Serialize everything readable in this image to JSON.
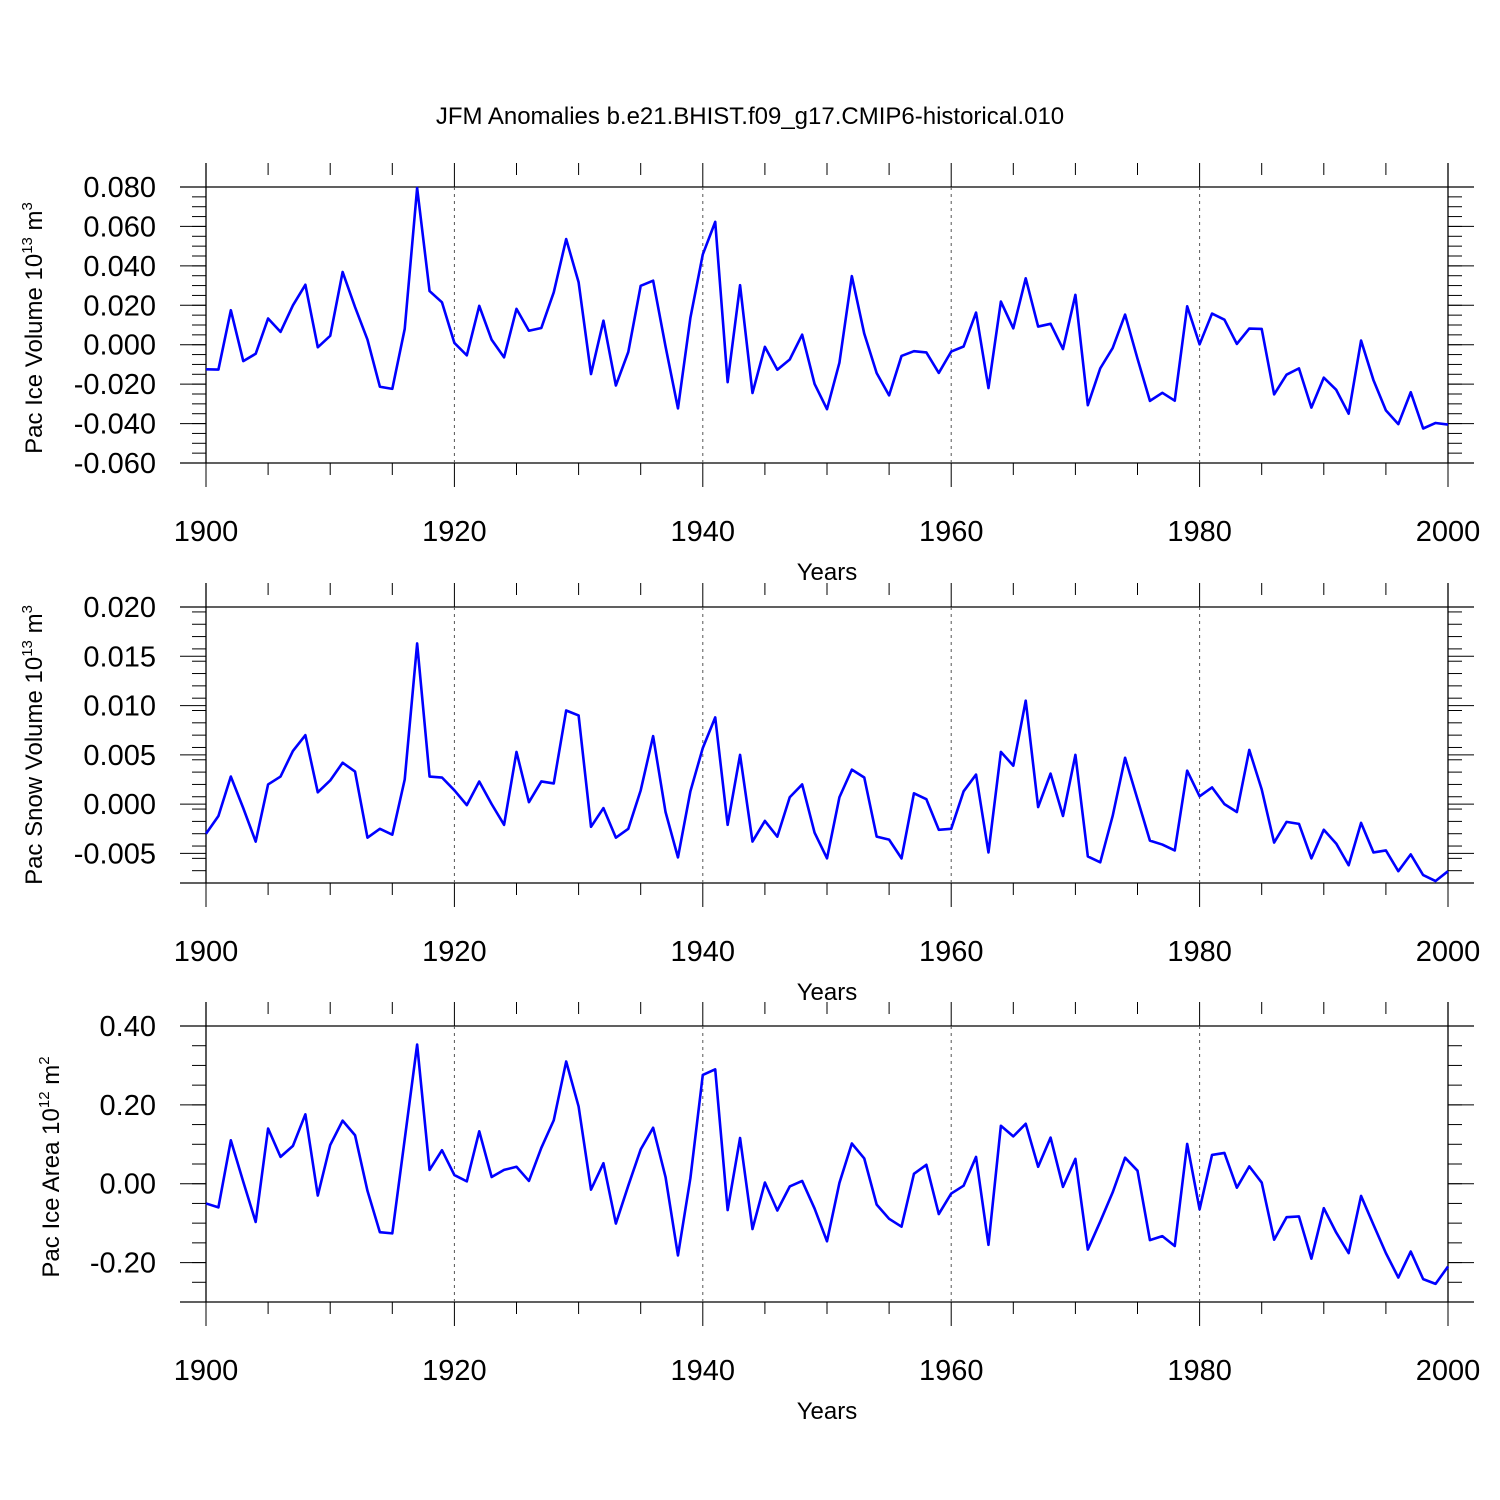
{
  "figure_title": "JFM Anomalies b.e21.BHIST.f09_g17.CMIP6-historical.010",
  "chart_data": [
    {
      "type": "line",
      "ylabel": "Pac Ice Volume",
      "ylabel_unit_base": "10",
      "ylabel_unit_exp": "13",
      "ylabel_unit": "m",
      "ylabel_unit_unit_exp": "3",
      "xlabel": "Years",
      "xlim": [
        1900,
        2000
      ],
      "ylim": [
        -0.06,
        0.08
      ],
      "x_ticks": [
        "1900",
        "1920",
        "1940",
        "1960",
        "1980",
        "2000"
      ],
      "y_ticks": [
        "0.080",
        "0.060",
        "0.040",
        "0.020",
        "0.000",
        "-0.020",
        "-0.040",
        "-0.060"
      ],
      "y_tick_values": [
        0.08,
        0.06,
        0.04,
        0.02,
        0.0,
        -0.02,
        -0.04,
        -0.06
      ],
      "grid": "dashed vertical at 1920, 1940, 1960, 1980",
      "x_start": 1900,
      "line_color": "#0000ff",
      "values": [
        -0.0125,
        -0.0126,
        0.0175,
        -0.0083,
        -0.0046,
        0.0133,
        0.0065,
        0.02,
        0.0304,
        -0.0013,
        0.0045,
        0.0369,
        0.0191,
        0.0026,
        -0.0213,
        -0.0224,
        0.008,
        0.0795,
        0.0272,
        0.0215,
        0.0009,
        -0.0054,
        0.0197,
        0.0025,
        -0.0064,
        0.0182,
        0.0071,
        0.0085,
        0.0266,
        0.0536,
        0.0317,
        -0.0149,
        0.0122,
        -0.0207,
        -0.0037,
        0.0299,
        0.0325,
        -0.0009,
        -0.0323,
        0.0136,
        0.0458,
        0.0623,
        -0.019,
        0.0302,
        -0.0245,
        -0.0011,
        -0.0127,
        -0.0075,
        0.0051,
        -0.0199,
        -0.0327,
        -0.0091,
        0.0348,
        0.0056,
        -0.0144,
        -0.0257,
        -0.0057,
        -0.0033,
        -0.0039,
        -0.0143,
        -0.0035,
        -0.0009,
        0.0163,
        -0.022,
        0.0219,
        0.0083,
        0.0337,
        0.0092,
        0.0106,
        -0.0022,
        0.0253,
        -0.0307,
        -0.012,
        -0.0017,
        0.0153,
        -0.0071,
        -0.0285,
        -0.0244,
        -0.0284,
        0.0195,
        0.0002,
        0.0158,
        0.0127,
        0.0004,
        0.0082,
        0.008,
        -0.0252,
        -0.0152,
        -0.012,
        -0.0319,
        -0.0167,
        -0.0229,
        -0.035,
        0.0021,
        -0.018,
        -0.0333,
        -0.0403,
        -0.0241,
        -0.0425,
        -0.0397,
        -0.0405
      ]
    },
    {
      "type": "line",
      "ylabel": "Pac Snow Volume",
      "ylabel_unit_base": "10",
      "ylabel_unit_exp": "13",
      "ylabel_unit": "m",
      "ylabel_unit_unit_exp": "3",
      "xlabel": "Years",
      "xlim": [
        1900,
        2000
      ],
      "ylim": [
        -0.008,
        0.02
      ],
      "x_ticks": [
        "1900",
        "1920",
        "1940",
        "1960",
        "1980",
        "2000"
      ],
      "y_ticks": [
        "0.020",
        "0.015",
        "0.010",
        "0.005",
        "0.000",
        "-0.005"
      ],
      "y_tick_values": [
        0.02,
        0.015,
        0.01,
        0.005,
        0.0,
        -0.005
      ],
      "grid": "dashed vertical at 1920, 1940, 1960, 1980",
      "x_start": 1900,
      "line_color": "#0000ff",
      "values": [
        -0.003,
        -0.0012,
        0.0028,
        -0.0004,
        -0.0038,
        0.002,
        0.0028,
        0.0054,
        0.007,
        0.0012,
        0.0024,
        0.0042,
        0.0033,
        -0.0034,
        -0.0025,
        -0.0031,
        0.0025,
        0.0163,
        0.0028,
        0.0027,
        0.0014,
        -0.0001,
        0.0023,
        0.0,
        -0.0021,
        0.0053,
        0.0002,
        0.0023,
        0.0021,
        0.0095,
        0.009,
        -0.0023,
        -0.0004,
        -0.0034,
        -0.0025,
        0.0014,
        0.0069,
        -0.0008,
        -0.0054,
        0.0013,
        0.0057,
        0.0088,
        -0.0021,
        0.005,
        -0.0038,
        -0.0017,
        -0.0033,
        0.0007,
        0.002,
        -0.0029,
        -0.0055,
        0.0007,
        0.0035,
        0.0027,
        -0.0033,
        -0.0036,
        -0.0055,
        0.0011,
        0.0005,
        -0.0026,
        -0.0025,
        0.0013,
        0.003,
        -0.0049,
        0.0053,
        0.0039,
        0.0105,
        -0.0003,
        0.0031,
        -0.0012,
        0.005,
        -0.0053,
        -0.0059,
        -0.0012,
        0.0047,
        0.0005,
        -0.0037,
        -0.0041,
        -0.0047,
        0.0034,
        0.0008,
        0.0017,
        0.0,
        -0.0008,
        0.0055,
        0.0015,
        -0.0039,
        -0.0018,
        -0.002,
        -0.0055,
        -0.0026,
        -0.004,
        -0.0062,
        -0.0019,
        -0.0049,
        -0.0047,
        -0.0068,
        -0.0051,
        -0.0072,
        -0.0078,
        -0.0068
      ]
    },
    {
      "type": "line",
      "ylabel": "Pac Ice Area",
      "ylabel_unit_base": "10",
      "ylabel_unit_exp": "12",
      "ylabel_unit": "m",
      "ylabel_unit_unit_exp": "2",
      "xlabel": "Years",
      "xlim": [
        1900,
        2000
      ],
      "ylim": [
        -0.3,
        0.4
      ],
      "x_ticks": [
        "1900",
        "1920",
        "1940",
        "1960",
        "1980",
        "2000"
      ],
      "y_ticks": [
        "0.40",
        "0.20",
        "0.00",
        "-0.20"
      ],
      "y_tick_values": [
        0.4,
        0.2,
        0.0,
        -0.2
      ],
      "grid": "dashed vertical at 1920, 1940, 1960, 1980",
      "x_start": 1900,
      "line_color": "#0000ff",
      "values": [
        -0.05,
        -0.06,
        0.11,
        0.005,
        -0.097,
        0.14,
        0.068,
        0.096,
        0.176,
        -0.03,
        0.098,
        0.16,
        0.123,
        -0.018,
        -0.123,
        -0.126,
        0.113,
        0.353,
        0.035,
        0.085,
        0.022,
        0.006,
        0.133,
        0.017,
        0.035,
        0.043,
        0.007,
        0.091,
        0.161,
        0.31,
        0.196,
        -0.015,
        0.052,
        -0.101,
        -0.005,
        0.087,
        0.142,
        0.017,
        -0.182,
        0.014,
        0.276,
        0.29,
        -0.067,
        0.116,
        -0.115,
        0.003,
        -0.068,
        -0.007,
        0.007,
        -0.063,
        -0.146,
        0.002,
        0.102,
        0.064,
        -0.053,
        -0.089,
        -0.109,
        0.025,
        0.048,
        -0.077,
        -0.025,
        -0.005,
        0.068,
        -0.155,
        0.147,
        0.12,
        0.152,
        0.043,
        0.117,
        -0.008,
        0.063,
        -0.167,
        -0.096,
        -0.022,
        0.066,
        0.033,
        -0.143,
        -0.133,
        -0.158,
        0.101,
        -0.065,
        0.073,
        0.078,
        -0.01,
        0.044,
        0.003,
        -0.142,
        -0.085,
        -0.083,
        -0.19,
        -0.062,
        -0.124,
        -0.176,
        -0.031,
        -0.104,
        -0.176,
        -0.238,
        -0.172,
        -0.242,
        -0.254,
        -0.21
      ]
    }
  ]
}
